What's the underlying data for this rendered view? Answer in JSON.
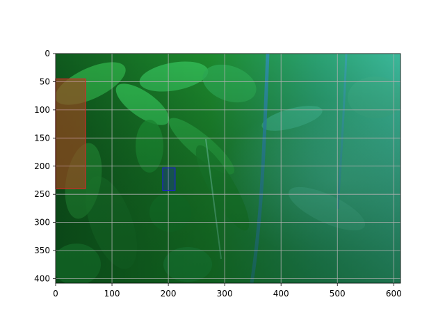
{
  "figure": {
    "x_axis": {
      "ticks": [
        0,
        100,
        200,
        300,
        400,
        500,
        600
      ],
      "tick_labels": [
        "0",
        "100",
        "200",
        "300",
        "400",
        "500",
        "600"
      ],
      "range": [
        0,
        612
      ]
    },
    "y_axis": {
      "ticks": [
        0,
        50,
        100,
        150,
        200,
        250,
        300,
        350,
        400
      ],
      "tick_labels": [
        "0",
        "50",
        "100",
        "150",
        "200",
        "250",
        "300",
        "350",
        "400"
      ],
      "range": [
        408,
        0
      ],
      "inverted": true
    },
    "grid": true,
    "image": {
      "description": "green leafy plant with pepper fruits, cyan-tinted foliage",
      "base_color": "#1f8a3a"
    },
    "annotations": [
      {
        "label": "",
        "x0": 0,
        "y0": 45,
        "x1": 53,
        "y1": 240,
        "color": "#d62728"
      },
      {
        "label": "",
        "x0": 190,
        "y0": 203,
        "x1": 212,
        "y1": 243,
        "color": "#1f1fd6"
      }
    ]
  }
}
